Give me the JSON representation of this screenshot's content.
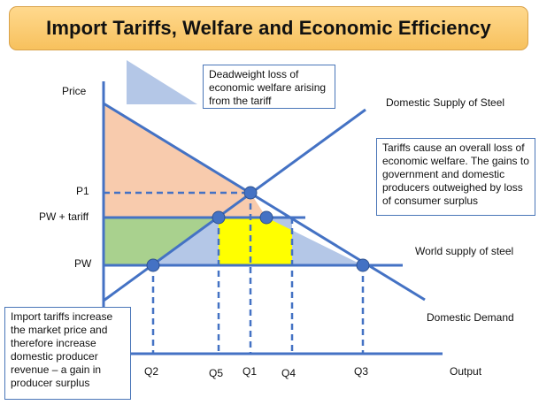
{
  "title": "Import Tariffs, Welfare and Economic Efficiency",
  "axis": {
    "y_label": "Price",
    "x_label": "Output"
  },
  "price_labels": {
    "p1": "P1",
    "pw_tariff": "PW + tariff",
    "pw": "PW"
  },
  "quantity_labels": {
    "q2": "Q2",
    "q5": "Q5",
    "q1": "Q1",
    "q4": "Q4",
    "q3": "Q3"
  },
  "curve_labels": {
    "domestic_supply": "Domestic Supply of Steel",
    "world_supply": "World supply of steel",
    "domestic_demand": "Domestic Demand"
  },
  "notes": {
    "deadweight": "Deadweight loss of economic welfare arising from the tariff",
    "welfare": "Tariffs cause an overall loss of economic welfare. The gains to government and domestic producers outweighed by loss of consumer surplus",
    "producer": "Import tariffs increase the market price and therefore increase domestic producer revenue – a gain in producer surplus"
  },
  "colors": {
    "line": "#4472c4",
    "point": "#4472c4",
    "consumer_surplus": "#f8cbad",
    "producer_gain": "#a9d18e",
    "government_revenue": "#ffff00",
    "deadweight": "#b4c7e7",
    "title_fill": "#fdd27a"
  }
}
